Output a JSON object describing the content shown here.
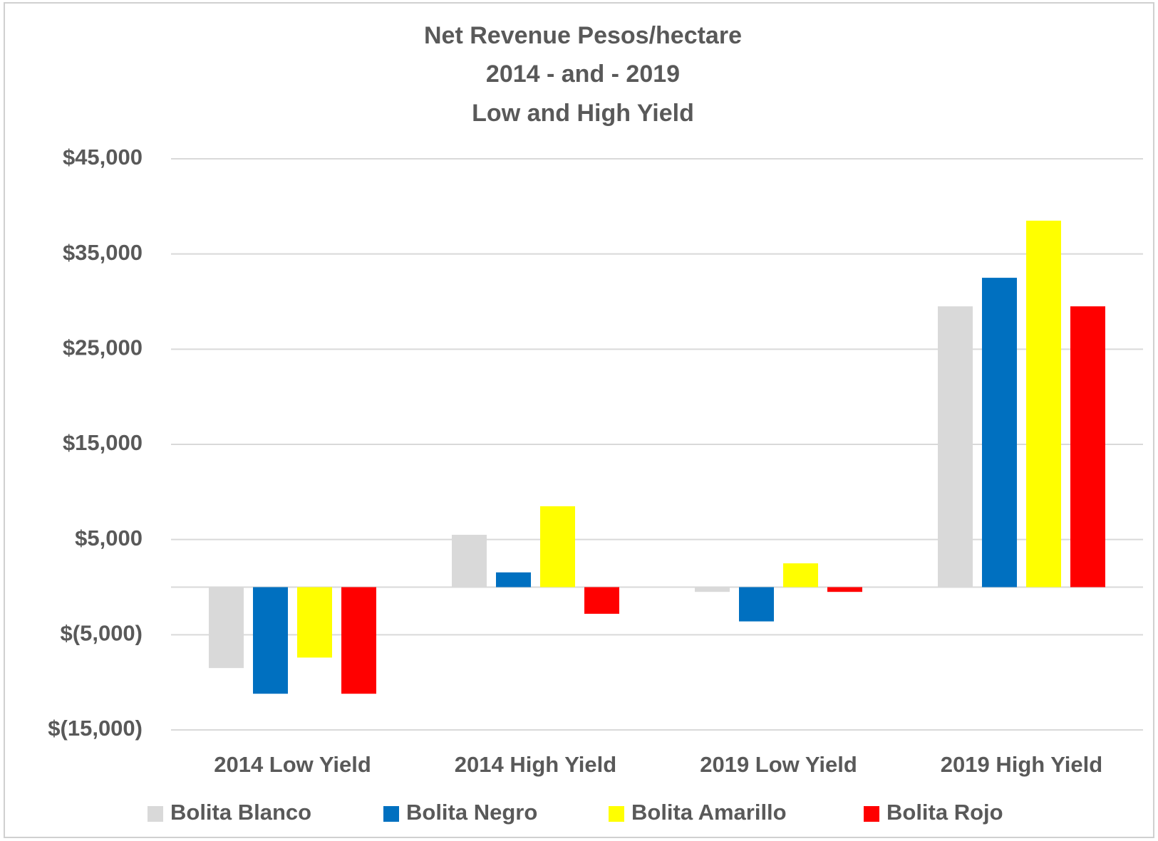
{
  "chart_data": {
    "type": "bar",
    "title": [
      "Net Revenue Pesos/hectare",
      "2014 - and - 2019",
      "Low and High Yield"
    ],
    "categories": [
      "2014 Low Yield",
      "2014 High Yield",
      "2019 Low Yield",
      "2019 High Yield"
    ],
    "series": [
      {
        "name": "Bolita Blanco",
        "color": "#d9d9d9",
        "values": [
          -8500,
          5500,
          -500,
          29500
        ]
      },
      {
        "name": "Bolita Negro",
        "color": "#0070c0",
        "values": [
          -11200,
          1550,
          -3600,
          32500
        ]
      },
      {
        "name": "Bolita Amarillo",
        "color": "#ffff00",
        "values": [
          -7400,
          8500,
          2500,
          38500
        ]
      },
      {
        "name": "Bolita Rojo",
        "color": "#ff0000",
        "values": [
          -11200,
          -2800,
          -500,
          29500
        ]
      }
    ],
    "ylim": [
      -15000,
      45000
    ],
    "yticks": [
      {
        "value": -15000,
        "label": "$(15,000)"
      },
      {
        "value": -5000,
        "label": "$(5,000)"
      },
      {
        "value": 5000,
        "label": "$5,000"
      },
      {
        "value": 15000,
        "label": "$15,000"
      },
      {
        "value": 25000,
        "label": "$25,000"
      },
      {
        "value": 35000,
        "label": "$35,000"
      },
      {
        "value": 45000,
        "label": "$45,000"
      }
    ],
    "grid": true,
    "legend": "bottom"
  }
}
